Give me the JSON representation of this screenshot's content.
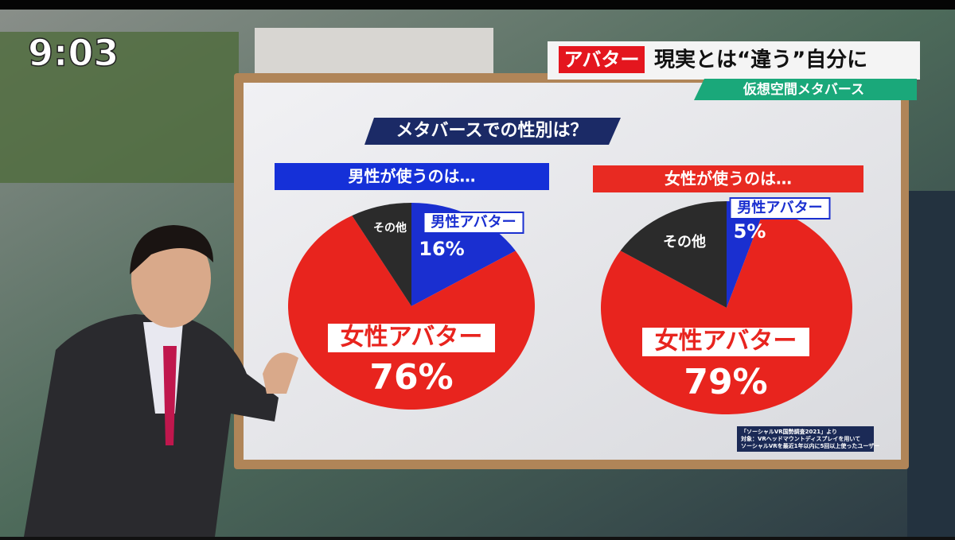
{
  "clock": "9:03",
  "headline": {
    "tag": "アバター",
    "title": "現実とは“違う”自分に",
    "subtitle": "仮想空間メタバース"
  },
  "panel_title": "メタバースでの性別は？",
  "source": [
    "「ソーシャルVR国勢調査2021」より",
    "対象：VRヘッドマウントディスプレイを用いて",
    "ソーシャルVRを最近1年以内に5回以上使ったユーザー"
  ],
  "chart_data": [
    {
      "type": "pie",
      "title": "男性が使うのは…",
      "title_color": "#1530d8",
      "categories": [
        "男性アバター",
        "女性アバター",
        "その他"
      ],
      "values": [
        16,
        76,
        8
      ],
      "value_labels": [
        "16%",
        "76%",
        null
      ],
      "colors": [
        "#1a2fd0",
        "#e8241e",
        "#2b2b2b"
      ]
    },
    {
      "type": "pie",
      "title": "女性が使うのは…",
      "title_color": "#e82a22",
      "categories": [
        "男性アバター",
        "女性アバター",
        "その他"
      ],
      "values": [
        5,
        79,
        16
      ],
      "value_labels": [
        "5%",
        "79%",
        null
      ],
      "colors": [
        "#1a2fd0",
        "#e8241e",
        "#2b2b2b"
      ]
    }
  ]
}
